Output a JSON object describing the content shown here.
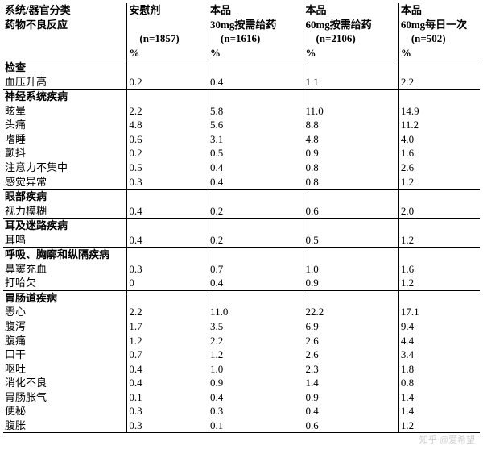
{
  "style": {
    "background_color": "#ffffff",
    "text_color": "#000000",
    "border_color": "#000000",
    "font_family": "SimSun",
    "font_size_pt": 10,
    "header_bold": true,
    "section_bold": true,
    "col_widths_pct": [
      26,
      17,
      20,
      20,
      17
    ]
  },
  "header": {
    "c0_l1": "系统/器官分类",
    "c0_l2": "药物不良反应",
    "c1_l1": "安慰剂",
    "c1_l2": "　(n=1857)",
    "c1_l3": "%",
    "c2_l1": "本品",
    "c2_l2": "30mg按需给药",
    "c2_l3": "　(n=1616)",
    "c2_l4": "%",
    "c3_l1": "本品",
    "c3_l2": "60mg按需给药",
    "c3_l3": "　(n=2106)",
    "c3_l4": "%",
    "c4_l1": "本品",
    "c4_l2": "60mg每日一次",
    "c4_l3": "　(n=502)",
    "c4_l4": "%"
  },
  "sections": [
    {
      "title": "检查",
      "rows": [
        {
          "n": "血压升高",
          "v": [
            "0.2",
            "0.4",
            "1.1",
            "2.2"
          ]
        }
      ]
    },
    {
      "title": "神经系统疾病",
      "rows": [
        {
          "n": "眩晕",
          "v": [
            "2.2",
            "5.8",
            "11.0",
            "14.9"
          ]
        },
        {
          "n": "头痛",
          "v": [
            "4.8",
            "5.6",
            "8.8",
            "11.2"
          ]
        },
        {
          "n": "嗜睡",
          "v": [
            "0.6",
            "3.1",
            "4.8",
            "4.0"
          ]
        },
        {
          "n": "颤抖",
          "v": [
            "0.2",
            "0.5",
            "0.9",
            "1.6"
          ]
        },
        {
          "n": "注意力不集中",
          "v": [
            "0.5",
            "0.4",
            "0.8",
            "2.6"
          ]
        },
        {
          "n": "感觉异常",
          "v": [
            "0.3",
            "0.4",
            "0.8",
            "1.2"
          ]
        }
      ]
    },
    {
      "title": "眼部疾病",
      "rows": [
        {
          "n": "视力模糊",
          "v": [
            "0.4",
            "0.2",
            "0.6",
            "2.0"
          ]
        }
      ]
    },
    {
      "title": "耳及迷路疾病",
      "rows": [
        {
          "n": "耳鸣",
          "v": [
            "0.4",
            "0.2",
            "0.5",
            "1.2"
          ]
        }
      ]
    },
    {
      "title": "呼吸、胸廓和纵隔疾病",
      "rows": [
        {
          "n": "鼻窦充血",
          "v": [
            "0.3",
            "0.7",
            "1.0",
            "1.6"
          ]
        },
        {
          "n": "打哈欠",
          "v": [
            "0",
            "0.4",
            "0.9",
            "1.2"
          ]
        }
      ]
    },
    {
      "title": "胃肠道疾病",
      "rows": [
        {
          "n": "恶心",
          "v": [
            "2.2",
            "11.0",
            "22.2",
            "17.1"
          ]
        },
        {
          "n": "腹泻",
          "v": [
            "1.7",
            "3.5",
            "6.9",
            "9.4"
          ]
        },
        {
          "n": "腹痛",
          "v": [
            "1.2",
            "2.2",
            "2.6",
            "4.4"
          ]
        },
        {
          "n": "口干",
          "v": [
            "0.7",
            "1.2",
            "2.6",
            "3.4"
          ]
        },
        {
          "n": "呕吐",
          "v": [
            "0.4",
            "1.0",
            "2.3",
            "1.8"
          ]
        },
        {
          "n": "消化不良",
          "v": [
            "0.4",
            "0.9",
            "1.4",
            "0.8"
          ]
        },
        {
          "n": "胃肠胀气",
          "v": [
            "0.1",
            "0.4",
            "0.9",
            "1.4"
          ]
        },
        {
          "n": "便秘",
          "v": [
            "0.3",
            "0.3",
            "0.4",
            "1.4"
          ]
        },
        {
          "n": "腹胀",
          "v": [
            "0.3",
            "0.1",
            "0.6",
            "1.2"
          ]
        }
      ]
    }
  ],
  "watermark": "知乎 @爱希望"
}
